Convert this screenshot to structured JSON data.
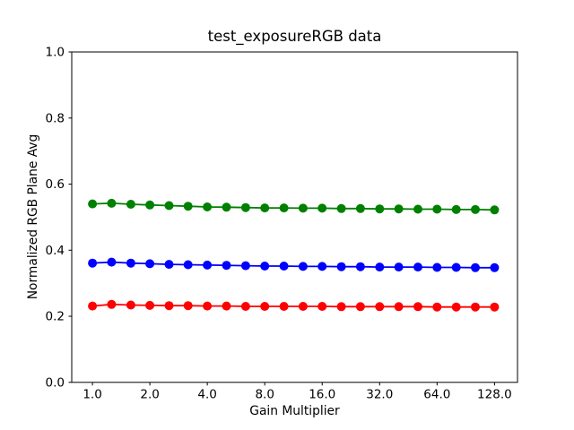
{
  "figure": {
    "background": "#ffffff",
    "frame_color": "#000000",
    "text_color": "#000000"
  },
  "chart_data": {
    "type": "line",
    "title": "test_exposureRGB data",
    "xlabel": "Gain Multiplier",
    "ylabel": "Normalized RGB Plane Avg",
    "xscale": "log2",
    "grid": false,
    "legend": "none",
    "marker": "o",
    "xlim_log2": [
      -0.36,
      7.4
    ],
    "ylim": [
      0.0,
      1.0
    ],
    "xticks": [
      1,
      2,
      4,
      8,
      16,
      32,
      64,
      128
    ],
    "xtick_labels": [
      "1.0",
      "2.0",
      "4.0",
      "8.0",
      "16.0",
      "32.0",
      "64.0",
      "128.0"
    ],
    "yticks": [
      0.0,
      0.2,
      0.4,
      0.6,
      0.8,
      1.0
    ],
    "ytick_labels": [
      "0.0",
      "0.2",
      "0.4",
      "0.6",
      "0.8",
      "1.0"
    ],
    "x": [
      1.0,
      1.26,
      1.59,
      2.0,
      2.52,
      3.17,
      4.0,
      5.04,
      6.35,
      8.0,
      10.08,
      12.7,
      16.0,
      20.16,
      25.4,
      32.0,
      40.32,
      50.8,
      64.0,
      80.63,
      101.59,
      128.0
    ],
    "series": [
      {
        "name": "green",
        "color": "#008000",
        "values": [
          0.54,
          0.542,
          0.539,
          0.537,
          0.535,
          0.533,
          0.531,
          0.53,
          0.529,
          0.528,
          0.528,
          0.527,
          0.527,
          0.526,
          0.526,
          0.525,
          0.525,
          0.524,
          0.524,
          0.523,
          0.523,
          0.522
        ]
      },
      {
        "name": "blue",
        "color": "#0000ff",
        "values": [
          0.361,
          0.364,
          0.361,
          0.359,
          0.357,
          0.356,
          0.355,
          0.354,
          0.353,
          0.352,
          0.352,
          0.351,
          0.351,
          0.35,
          0.35,
          0.349,
          0.349,
          0.349,
          0.348,
          0.348,
          0.347,
          0.347
        ]
      },
      {
        "name": "red",
        "color": "#ff0000",
        "values": [
          0.231,
          0.236,
          0.234,
          0.233,
          0.232,
          0.232,
          0.231,
          0.231,
          0.23,
          0.23,
          0.23,
          0.23,
          0.23,
          0.229,
          0.229,
          0.229,
          0.229,
          0.229,
          0.228,
          0.228,
          0.228,
          0.228
        ]
      }
    ]
  }
}
